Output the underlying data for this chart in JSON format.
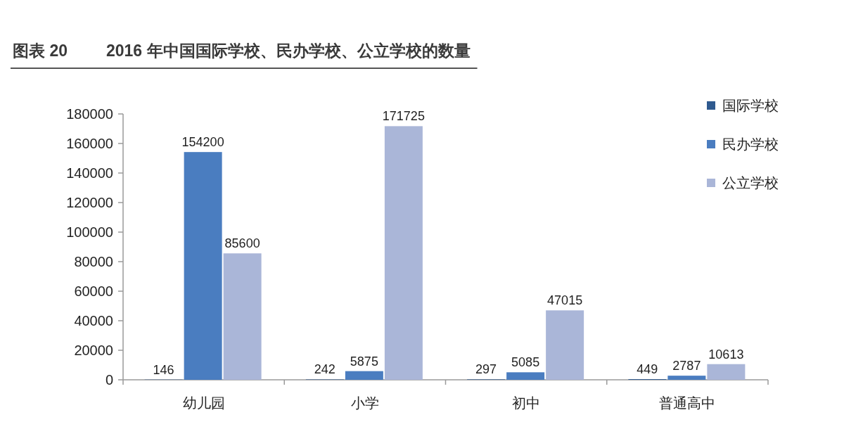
{
  "chart_data": {
    "type": "bar",
    "title": "图表 20",
    "subtitle": "2016 年中国国际学校、民办学校、公立学校的数量",
    "categories": [
      "幼儿园",
      "小学",
      "初中",
      "普通高中"
    ],
    "series": [
      {
        "name": "国际学校",
        "color": "#2f5a8f",
        "values": [
          146,
          242,
          297,
          449
        ]
      },
      {
        "name": "民办学校",
        "color": "#4a7dc0",
        "values": [
          154200,
          5875,
          5085,
          2787
        ]
      },
      {
        "name": "公立学校",
        "color": "#aab6d8",
        "values": [
          85600,
          171725,
          47015,
          10613
        ]
      }
    ],
    "ylim": [
      0,
      180000
    ],
    "yticks": [
      0,
      20000,
      40000,
      60000,
      80000,
      100000,
      120000,
      140000,
      160000,
      180000
    ],
    "data_labels": true,
    "legend": "top right"
  }
}
